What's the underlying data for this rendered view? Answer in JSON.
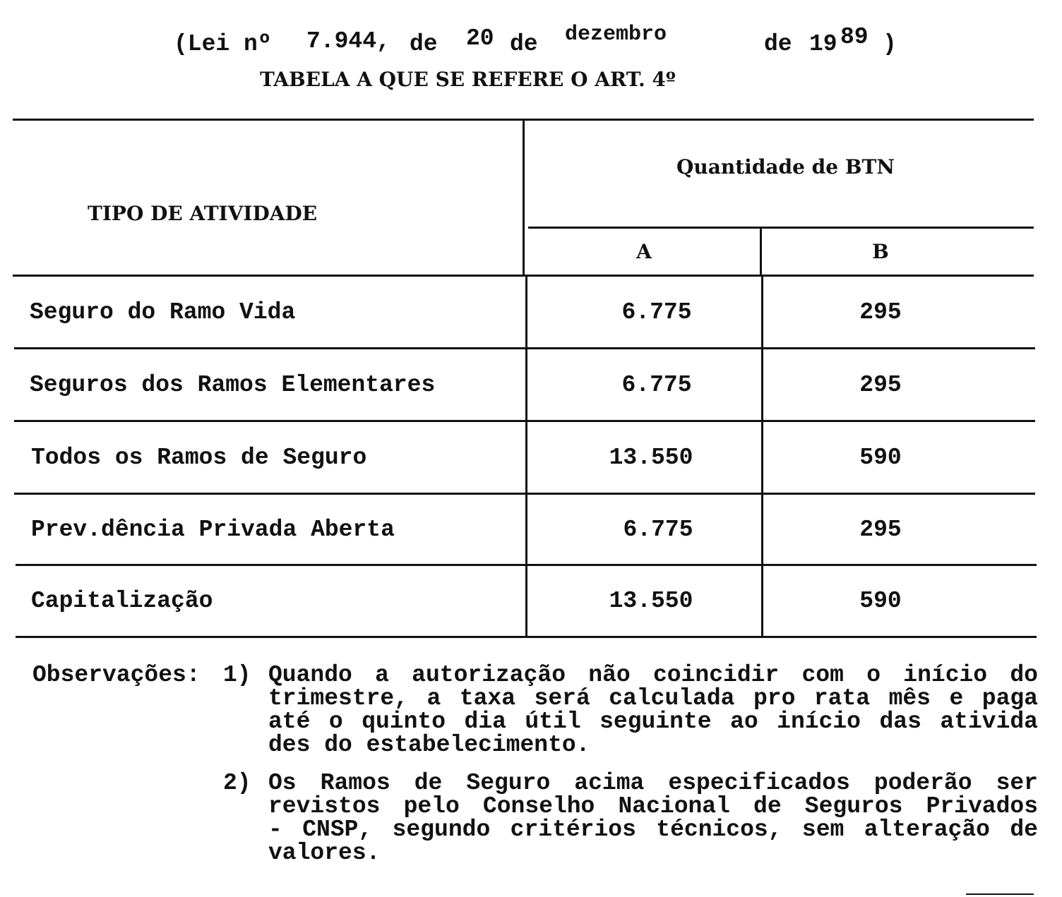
{
  "header": {
    "law_prefix": "(Lei nº",
    "law_number": "7.944,",
    "de1": "de",
    "day": "20",
    "de2": "de",
    "month": "dezembro",
    "de3": "de",
    "year_prefix": "19",
    "year_suffix": "89",
    "close_paren": ")",
    "table_title": "TABELA A QUE SE REFERE O ART. 4º"
  },
  "table": {
    "col_activity": "TIPO DE ATIVIDADE",
    "col_group": "Quantidade de BTN",
    "col_a": "A",
    "col_b": "B",
    "rows": [
      {
        "activity": "Seguro do Ramo Vida",
        "a": "6.775",
        "b": "295"
      },
      {
        "activity": "Seguros dos Ramos Elementares",
        "a": "6.775",
        "b": "295"
      },
      {
        "activity": "Todos os Ramos de Seguro",
        "a": "13.550",
        "b": "590"
      },
      {
        "activity": "Prev.dência Privada Aberta",
        "a": "6.775",
        "b": "295"
      },
      {
        "activity": "Capitalização",
        "a": "13.550",
        "b": "590"
      }
    ]
  },
  "observations": {
    "label": "Observações:",
    "items": [
      {
        "number": "1)",
        "lines": [
          "Quando a autorização não coincidir com o início   do",
          "trimestre, a taxa será calculada pro rata mês e paga",
          "até o quinto dia útil seguinte ao início das ativida",
          "des do estabelecimento."
        ]
      },
      {
        "number": "2)",
        "lines": [
          "Os Ramos de Seguro acima especificados poderão   ser",
          "revistos pelo Conselho Nacional de Seguros  Privados",
          "- CNSP, segundo critérios técnicos, sem alteração de",
          "valores."
        ]
      }
    ]
  }
}
